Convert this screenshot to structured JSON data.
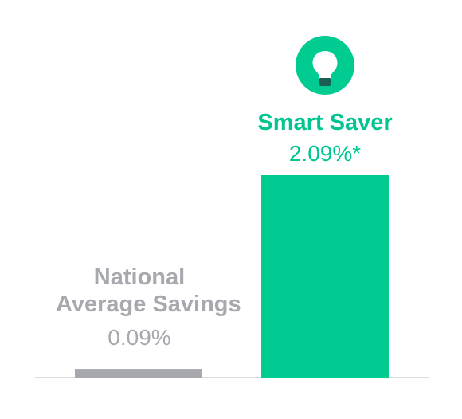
{
  "chart_data": {
    "type": "bar",
    "categories": [
      "National Average Savings",
      "Smart Saver"
    ],
    "category_lines": [
      [
        "National",
        "Average Savings"
      ],
      [
        "Smart Saver"
      ]
    ],
    "values": [
      0.09,
      2.09
    ],
    "value_labels": [
      "0.09%",
      "2.09%*"
    ],
    "unit": "%",
    "colors": {
      "national": "#a7a9ae",
      "smart_saver": "#00cc92",
      "national_text": "#a7a9ae",
      "smart_saver_text": "#00c591",
      "baseline": "#cfd0d3"
    },
    "icons": [
      "lightbulb-icon"
    ],
    "grid": false,
    "legend": "none"
  }
}
